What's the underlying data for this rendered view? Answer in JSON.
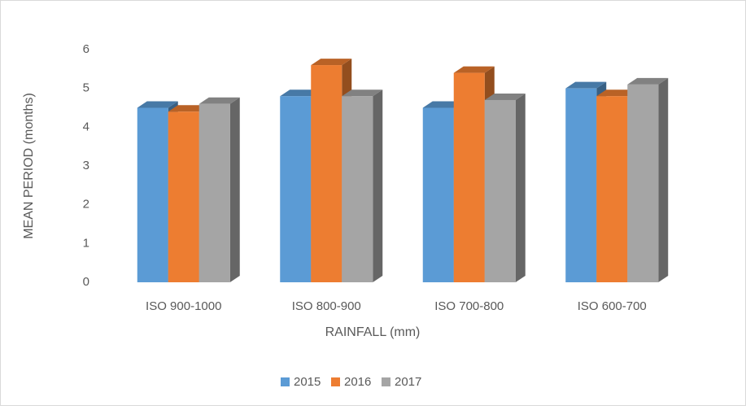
{
  "chart_data": {
    "type": "bar3d",
    "categories": [
      "ISO 900-1000",
      "ISO 800-900",
      "ISO 700-800",
      "ISO 600-700"
    ],
    "series": [
      {
        "name": "2015",
        "color": "#5b9bd5",
        "values": [
          4.5,
          4.8,
          4.5,
          5.0
        ]
      },
      {
        "name": "2016",
        "color": "#ed7d31",
        "values": [
          4.4,
          5.6,
          5.4,
          4.8
        ]
      },
      {
        "name": "2017",
        "color": "#a5a5a5",
        "values": [
          4.6,
          4.8,
          4.7,
          5.1
        ]
      }
    ],
    "ylim": [
      0,
      6
    ],
    "yticks": [
      0,
      1,
      2,
      3,
      4,
      5,
      6
    ],
    "xlabel": "RAINFALL (mm)",
    "ylabel": "MEAN PERIOD (months)",
    "legend": "bottom"
  }
}
